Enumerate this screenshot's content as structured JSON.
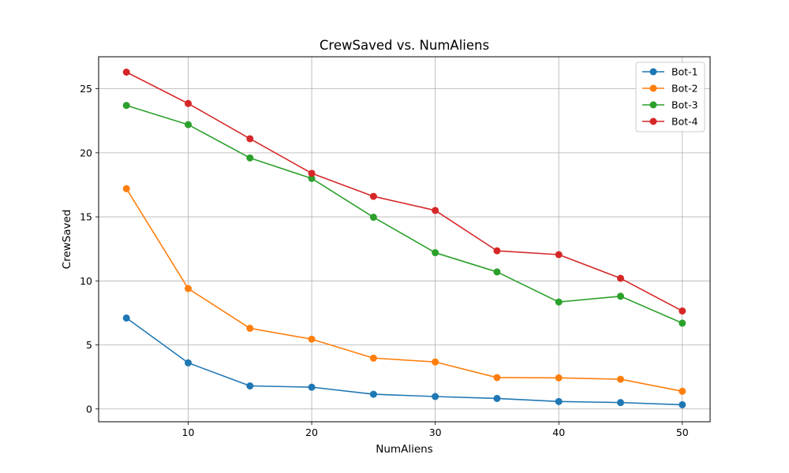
{
  "chart_data": {
    "type": "line",
    "title": "CrewSaved vs. NumAliens",
    "xlabel": "NumAliens",
    "ylabel": "CrewSaved",
    "x": [
      5,
      10,
      15,
      20,
      25,
      30,
      35,
      40,
      45,
      50
    ],
    "xlim": [
      2.75,
      52.25
    ],
    "ylim": [
      -1.0,
      27.5
    ],
    "xticks": [
      10,
      20,
      30,
      40,
      50
    ],
    "yticks": [
      0,
      5,
      10,
      15,
      20,
      25
    ],
    "grid": true,
    "legend_position": "top-right",
    "series": [
      {
        "name": "Bot-1",
        "color": "#1f77b4",
        "values": [
          7.1,
          3.6,
          1.8,
          1.7,
          1.15,
          0.97,
          0.82,
          0.58,
          0.5,
          0.33
        ]
      },
      {
        "name": "Bot-2",
        "color": "#ff7f0e",
        "values": [
          17.2,
          9.4,
          6.3,
          5.45,
          3.97,
          3.67,
          2.45,
          2.43,
          2.32,
          1.38
        ]
      },
      {
        "name": "Bot-3",
        "color": "#2ca02c",
        "values": [
          23.7,
          22.2,
          19.6,
          18.0,
          14.97,
          12.2,
          10.7,
          8.35,
          8.8,
          6.7
        ]
      },
      {
        "name": "Bot-4",
        "color": "#d62728",
        "values": [
          26.3,
          23.85,
          21.1,
          18.4,
          16.6,
          15.5,
          12.35,
          12.05,
          10.2,
          7.65
        ]
      }
    ]
  }
}
